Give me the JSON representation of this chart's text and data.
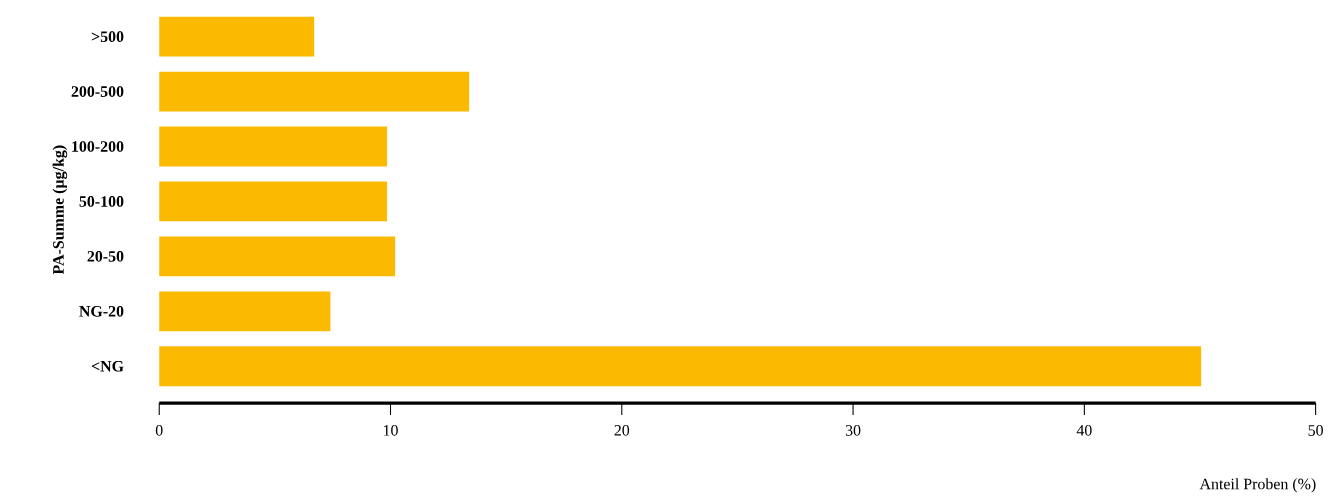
{
  "chart_data": {
    "type": "bar",
    "orientation": "horizontal",
    "categories": [
      ">500",
      "200-500",
      "100-200",
      "50-100",
      "20-50",
      "NG-20",
      "<NG"
    ],
    "values": [
      6.7,
      13.4,
      9.85,
      9.85,
      10.2,
      7.4,
      45.05
    ],
    "color": "#fbb900",
    "xlim": [
      0,
      50
    ],
    "xticks": [
      0,
      10,
      20,
      30,
      40,
      50
    ],
    "xlabel": "Anteil Proben (%)",
    "ylabel": "PA-Summe (µg/kg)",
    "grid": false
  }
}
